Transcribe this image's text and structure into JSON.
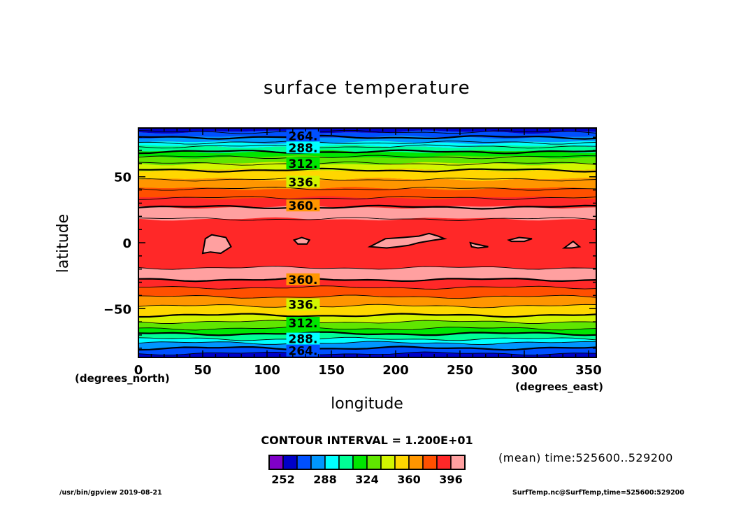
{
  "chart_data": {
    "type": "contour",
    "title": "surface temperature",
    "xlabel": "longitude",
    "ylabel": "latitude",
    "x_unit": "(degrees_east)",
    "y_unit": "(degrees_north)",
    "xlim": [
      0,
      356
    ],
    "ylim": [
      -87,
      87
    ],
    "x_ticks": [
      0,
      50,
      100,
      150,
      200,
      250,
      300,
      350
    ],
    "y_ticks": [
      50,
      0,
      -50
    ],
    "y_tick_labels": [
      "50",
      "0",
      "−50"
    ],
    "contour_interval_text": "CONTOUR INTERVAL = 1.200E+01",
    "contour_interval": 12,
    "levels": [
      252,
      264,
      276,
      288,
      300,
      312,
      324,
      336,
      348,
      360,
      372,
      384,
      396
    ],
    "contour_labels_north": [
      {
        "value": 264,
        "text": "264.",
        "lat": 81
      },
      {
        "value": 288,
        "text": "288.",
        "lat": 72
      },
      {
        "value": 312,
        "text": "312.",
        "lat": 60
      },
      {
        "value": 336,
        "text": "336.",
        "lat": 46
      },
      {
        "value": 360,
        "text": "360.",
        "lat": 28
      }
    ],
    "contour_labels_south": [
      {
        "value": 360,
        "text": "360.",
        "lat": -28
      },
      {
        "value": 336,
        "text": "336.",
        "lat": -47
      },
      {
        "value": 312,
        "text": "312.",
        "lat": -61
      },
      {
        "value": 288,
        "text": "288.",
        "lat": -73
      },
      {
        "value": 264,
        "text": "264.",
        "lat": -82
      }
    ],
    "band_boundaries_lat": {
      "north": [
        87,
        84,
        80,
        76,
        73,
        69,
        65,
        60,
        55,
        48,
        41,
        34,
        27,
        18
      ],
      "south": [
        -87,
        -84,
        -80,
        -76,
        -73,
        -69,
        -65,
        -60,
        -55,
        -48,
        -41,
        -34,
        -28,
        -19
      ]
    },
    "band_colors": [
      "#7f00c8",
      "#0000c8",
      "#0050ff",
      "#0096ff",
      "#00ffff",
      "#00ff96",
      "#00e600",
      "#60e600",
      "#d2f500",
      "#ffd700",
      "#ff9600",
      "#ff5000",
      "#ff2828",
      "#ffa0a0"
    ],
    "max_patches": [
      {
        "points": [
          [
            50,
            -8
          ],
          [
            52,
            3
          ],
          [
            57,
            6
          ],
          [
            68,
            4
          ],
          [
            72,
            -3
          ],
          [
            64,
            -8
          ],
          [
            56,
            -7
          ]
        ]
      },
      {
        "points": [
          [
            121,
            2
          ],
          [
            127,
            4
          ],
          [
            133,
            2
          ],
          [
            131,
            -1
          ],
          [
            124,
            -1
          ]
        ]
      },
      {
        "points": [
          [
            180,
            -3
          ],
          [
            186,
            0
          ],
          [
            192,
            3
          ],
          [
            206,
            4
          ],
          [
            218,
            5
          ],
          [
            226,
            7
          ],
          [
            233,
            5
          ],
          [
            238,
            3
          ],
          [
            230,
            2
          ],
          [
            218,
            0
          ],
          [
            210,
            -2
          ],
          [
            202,
            -3
          ],
          [
            193,
            -4
          ]
        ]
      },
      {
        "points": [
          [
            258,
            0
          ],
          [
            262,
            -1
          ],
          [
            272,
            -3
          ],
          [
            264,
            -4
          ],
          [
            259,
            -3
          ]
        ]
      },
      {
        "points": [
          [
            288,
            2
          ],
          [
            296,
            4
          ],
          [
            306,
            3
          ],
          [
            300,
            1
          ],
          [
            290,
            1
          ]
        ]
      },
      {
        "points": [
          [
            331,
            -4
          ],
          [
            338,
            1
          ],
          [
            343,
            -3
          ],
          [
            337,
            -4
          ]
        ]
      }
    ],
    "colorbar": {
      "colors": [
        "#7f00c8",
        "#0000c8",
        "#0050ff",
        "#0096ff",
        "#00ffff",
        "#00ff96",
        "#00e600",
        "#60e600",
        "#d2f500",
        "#ffd700",
        "#ff9600",
        "#ff5000",
        "#ff2828",
        "#ffa0a0"
      ],
      "labels": [
        "252",
        "288",
        "324",
        "360",
        "396"
      ]
    },
    "mean_info": "(mean) time:525600..529200",
    "footer_left": "/usr/bin/gpview   2019-08-21",
    "footer_right": "SurfTemp.nc@SurfTemp,time=525600:529200"
  }
}
